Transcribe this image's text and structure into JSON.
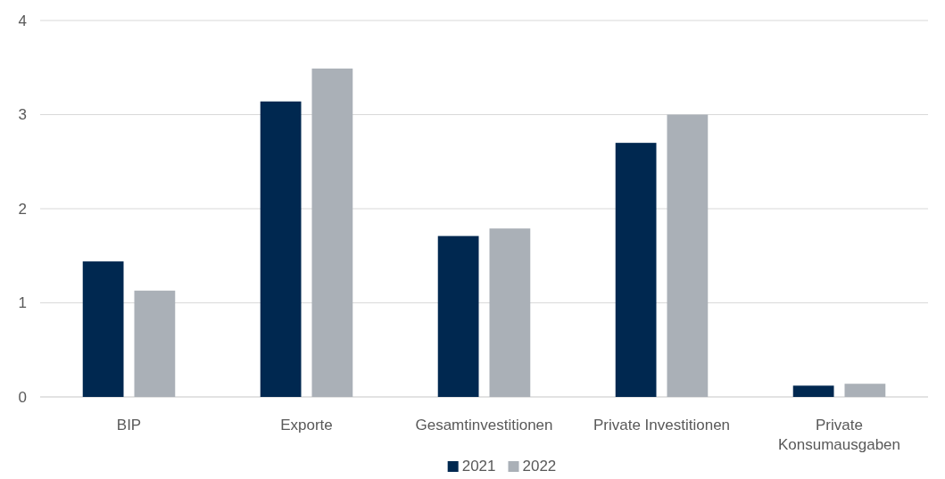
{
  "chart_data": {
    "type": "bar",
    "categories": [
      "BIP",
      "Exporte",
      "Gesamtinvestitionen",
      "Private Investitionen",
      "Private Konsumausgaben"
    ],
    "series": [
      {
        "name": "2021",
        "color": "#002850",
        "values": [
          1.44,
          3.14,
          1.71,
          2.7,
          0.12
        ]
      },
      {
        "name": "2022",
        "color": "#aab0b7",
        "values": [
          1.13,
          3.49,
          1.79,
          3.0,
          0.14
        ]
      }
    ],
    "ylim": [
      0,
      4
    ],
    "yticks": [
      0,
      1,
      2,
      3,
      4
    ],
    "grid": "y",
    "legend": "bottom"
  }
}
